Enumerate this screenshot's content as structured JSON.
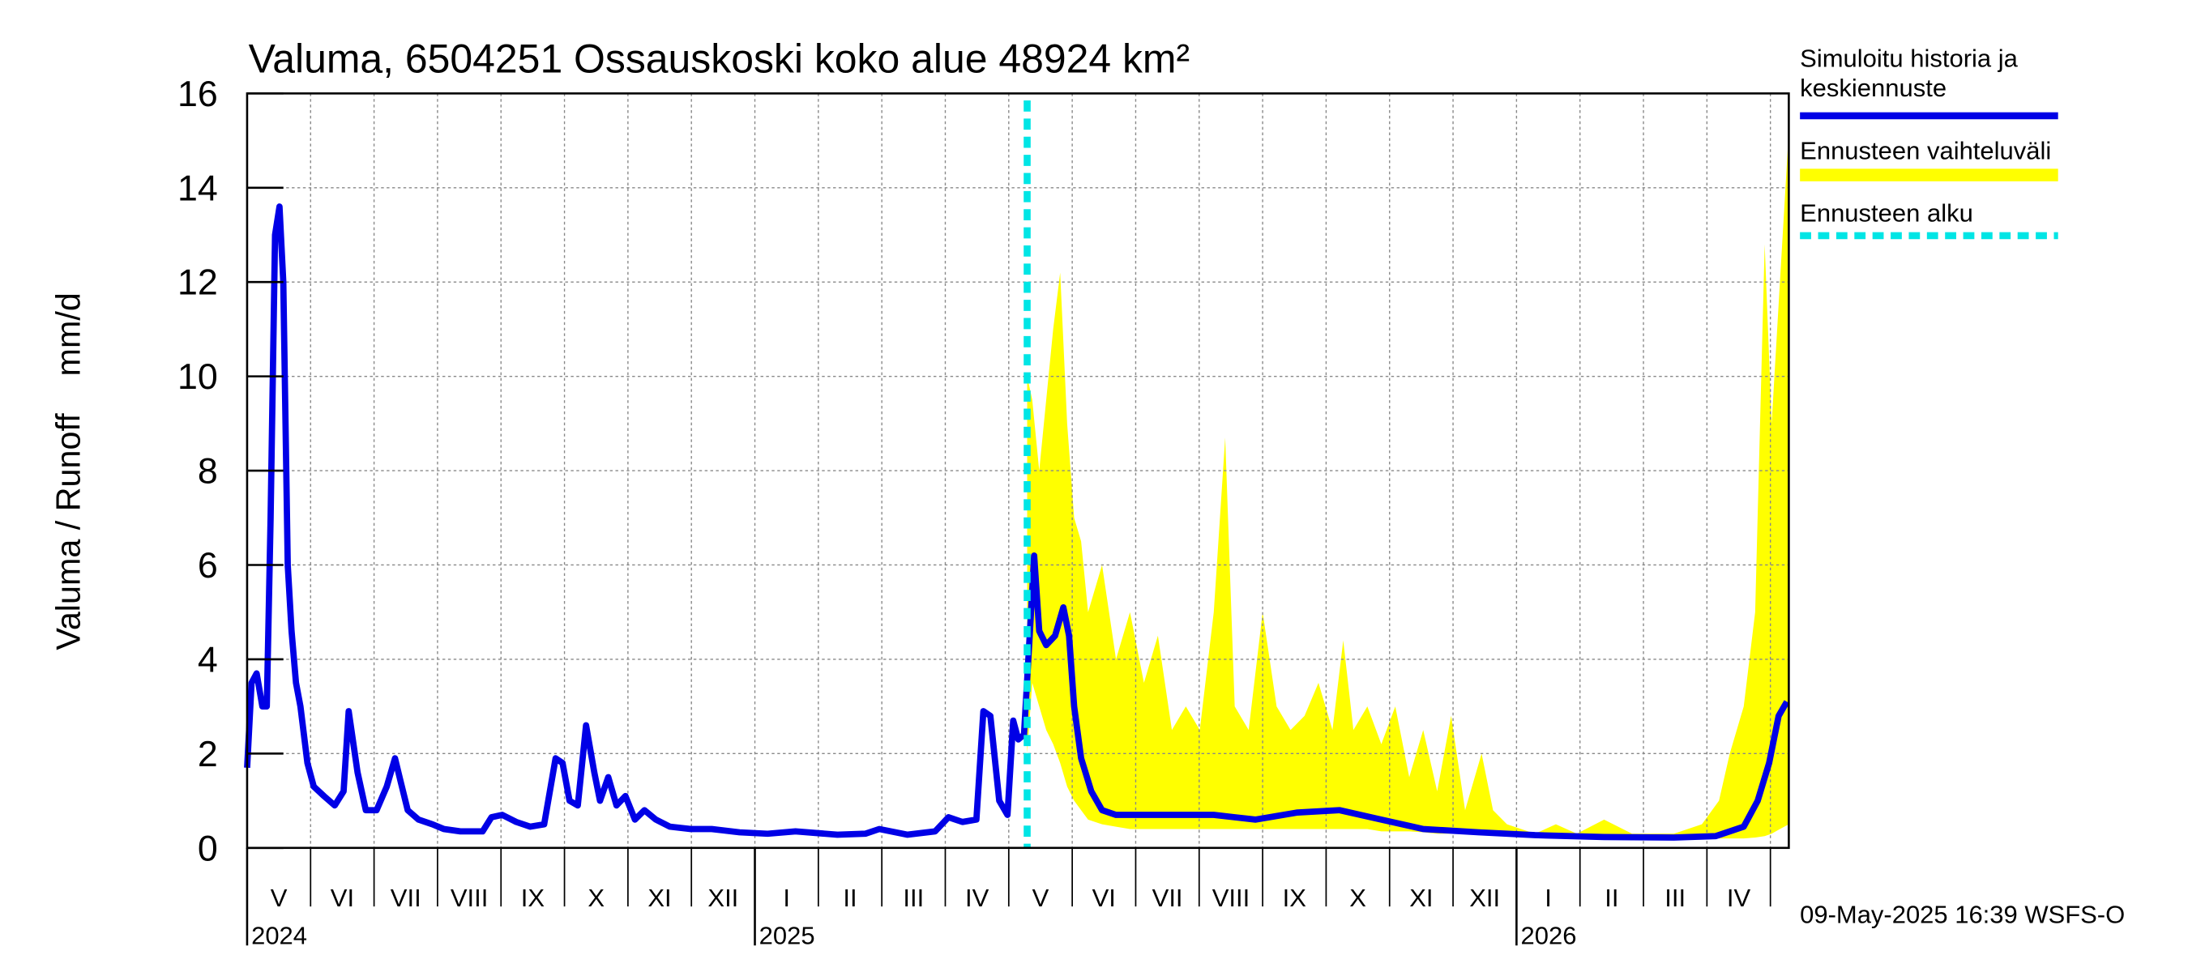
{
  "chart_data": {
    "type": "line",
    "title": "Valuma, 6504251 Ossauskoski koko alue 48924 km²",
    "ylabel": "Valuma / Runoff    mm/d",
    "timestamp": "09-May-2025 16:39 WSFS-O",
    "ylim": [
      0,
      16
    ],
    "yticks": [
      0,
      2,
      4,
      6,
      8,
      10,
      12,
      14,
      16
    ],
    "xlim": [
      0,
      24.29
    ],
    "xticks": [
      0,
      1,
      2,
      3,
      4,
      5,
      6,
      7,
      8,
      9,
      10,
      11,
      12,
      13,
      14,
      15,
      16,
      17,
      18,
      19,
      20,
      21,
      22,
      23,
      24
    ],
    "month_labels": [
      "V",
      "VI",
      "VII",
      "VIII",
      "IX",
      "X",
      "XI",
      "XII",
      "I",
      "II",
      "III",
      "IV",
      "V",
      "VI",
      "VII",
      "VIII",
      "IX",
      "X",
      "XI",
      "XII",
      "I",
      "II",
      "III",
      "IV"
    ],
    "year_labels": [
      {
        "value": 0,
        "label": "2024"
      },
      {
        "value": 8,
        "label": "2025"
      },
      {
        "value": 20,
        "label": "2026"
      }
    ],
    "grid": true,
    "series": [
      {
        "name": "Simuloitu historia ja keskiennuste",
        "color": "#0000e6",
        "x": [
          0,
          0.07,
          0.15,
          0.24,
          0.31,
          0.37,
          0.44,
          0.51,
          0.57,
          0.64,
          0.7,
          0.77,
          0.84,
          0.95,
          1.05,
          1.21,
          1.38,
          1.52,
          1.6,
          1.74,
          1.87,
          2.04,
          2.2,
          2.33,
          2.42,
          2.53,
          2.7,
          2.92,
          3.1,
          3.36,
          3.71,
          3.85,
          4.02,
          4.24,
          4.46,
          4.68,
          4.86,
          4.97,
          5.08,
          5.21,
          5.34,
          5.47,
          5.56,
          5.69,
          5.82,
          5.96,
          6.11,
          6.26,
          6.44,
          6.66,
          6.99,
          7.32,
          7.76,
          8.2,
          8.64,
          9.3,
          9.74,
          9.96,
          10.4,
          10.84,
          11.05,
          11.27,
          11.49,
          11.6,
          11.71,
          11.85,
          11.98,
          12.07,
          12.15,
          12.24,
          12.33,
          12.4,
          12.48,
          12.59,
          12.73,
          12.86,
          12.95,
          13.03,
          13.14,
          13.3,
          13.47,
          13.69,
          14.02,
          14.57,
          15.23,
          15.89,
          16.55,
          17.21,
          17.87,
          18.53,
          19.41,
          20.29,
          21.38,
          22.48,
          23.14,
          23.58,
          23.8,
          23.98,
          24.13,
          24.26
        ],
        "values": [
          1.7,
          3.5,
          3.7,
          3.0,
          3.0,
          7,
          13.0,
          13.6,
          12,
          6,
          4.6,
          3.5,
          3.0,
          1.8,
          1.3,
          1.1,
          0.9,
          1.2,
          2.9,
          1.6,
          0.8,
          0.8,
          1.3,
          1.9,
          1.4,
          0.8,
          0.6,
          0.5,
          0.4,
          0.35,
          0.35,
          0.65,
          0.7,
          0.55,
          0.45,
          0.5,
          1.9,
          1.8,
          1.0,
          0.9,
          2.6,
          1.6,
          1.0,
          1.5,
          0.9,
          1.1,
          0.6,
          0.8,
          0.6,
          0.45,
          0.4,
          0.4,
          0.33,
          0.3,
          0.35,
          0.28,
          0.3,
          0.4,
          0.28,
          0.35,
          0.65,
          0.55,
          0.6,
          2.9,
          2.8,
          1.0,
          0.7,
          2.7,
          2.3,
          2.4,
          4.5,
          6.2,
          4.6,
          4.3,
          4.5,
          5.1,
          4.5,
          3.0,
          1.9,
          1.2,
          0.8,
          0.7,
          0.7,
          0.7,
          0.7,
          0.6,
          0.75,
          0.8,
          0.6,
          0.4,
          0.33,
          0.27,
          0.23,
          0.22,
          0.25,
          0.45,
          1.0,
          1.8,
          2.8,
          3.1
        ]
      },
      {
        "name": "Ennusteen vaihteluväli",
        "color": "#ffff00",
        "x": [
          12.29,
          12.37,
          12.48,
          12.59,
          12.7,
          12.81,
          12.92,
          13.03,
          13.14,
          13.25,
          13.47,
          13.69,
          13.91,
          14.13,
          14.35,
          14.57,
          14.79,
          15.01,
          15.23,
          15.41,
          15.56,
          15.78,
          16.0,
          16.22,
          16.44,
          16.66,
          16.88,
          17.1,
          17.27,
          17.43,
          17.65,
          17.87,
          18.09,
          18.31,
          18.53,
          18.75,
          18.97,
          19.19,
          19.45,
          19.63,
          19.85,
          20.29,
          20.62,
          20.95,
          21.38,
          21.82,
          22.48,
          22.92,
          23.19,
          23.36,
          23.58,
          23.76,
          23.91,
          24.02,
          24.15,
          24.29
        ],
        "upper": [
          10.0,
          9.5,
          8.0,
          9.5,
          11.0,
          12.2,
          9.0,
          7.0,
          6.5,
          5.0,
          6.0,
          4.0,
          5.0,
          3.5,
          4.5,
          2.5,
          3.0,
          2.5,
          5.0,
          8.7,
          3.0,
          2.5,
          5.0,
          3.0,
          2.5,
          2.8,
          3.5,
          2.5,
          4.4,
          2.5,
          3.0,
          2.2,
          3.0,
          1.5,
          2.5,
          1.2,
          2.8,
          0.8,
          2.0,
          0.8,
          0.5,
          0.3,
          0.5,
          0.3,
          0.6,
          0.3,
          0.3,
          0.5,
          1.0,
          2.0,
          3.0,
          5.0,
          12.8,
          9.0,
          12.0,
          15.2
        ],
        "lower": [
          2.0,
          3.5,
          3.0,
          2.5,
          2.2,
          1.8,
          1.3,
          1.0,
          0.8,
          0.6,
          0.5,
          0.45,
          0.4,
          0.4,
          0.4,
          0.4,
          0.4,
          0.4,
          0.4,
          0.4,
          0.4,
          0.4,
          0.4,
          0.4,
          0.4,
          0.4,
          0.4,
          0.4,
          0.4,
          0.4,
          0.4,
          0.35,
          0.35,
          0.35,
          0.33,
          0.3,
          0.3,
          0.3,
          0.28,
          0.27,
          0.25,
          0.22,
          0.2,
          0.2,
          0.2,
          0.2,
          0.18,
          0.18,
          0.2,
          0.2,
          0.2,
          0.22,
          0.25,
          0.3,
          0.4,
          0.5
        ]
      }
    ],
    "forecast_start": {
      "name": "Ennusteen alku",
      "x": 12.29,
      "color": "#00e5e5"
    }
  }
}
